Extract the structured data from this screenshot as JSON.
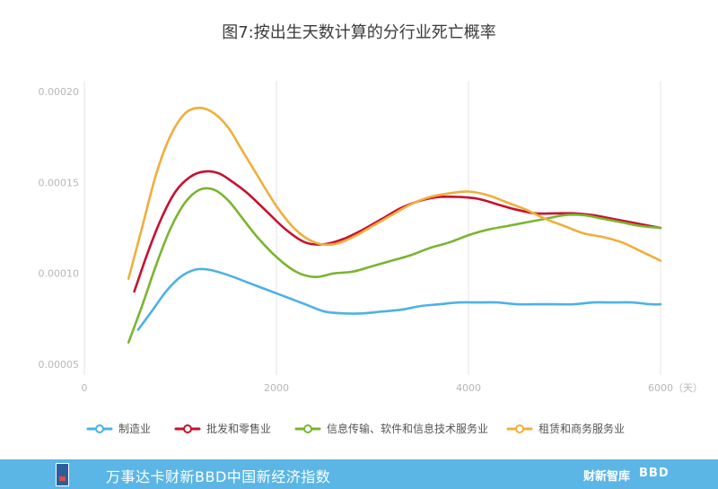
{
  "chart_data": {
    "type": "line",
    "title": "图7:按出生天数计算的分行业死亡概率",
    "xlabel": "",
    "ylabel": "",
    "x_unit": "（天）",
    "xlim": [
      0,
      6000
    ],
    "ylim": [
      5e-05,
      0.0002
    ],
    "x_ticks": [
      "0",
      "2000",
      "4000",
      "6000"
    ],
    "y_ticks": [
      "0.00005",
      "0.00010",
      "0.00015",
      "0.00020"
    ],
    "grid": "vertical",
    "legend_position": "bottom",
    "series": [
      {
        "name": "制造业",
        "color": "#4db2e4",
        "x": [
          560,
          700,
          850,
          1000,
          1150,
          1300,
          1500,
          1700,
          1900,
          2100,
          2300,
          2500,
          2700,
          2900,
          3100,
          3300,
          3500,
          3700,
          3900,
          4100,
          4300,
          4500,
          4700,
          4900,
          5100,
          5300,
          5500,
          5700,
          5900,
          6000
        ],
        "values": [
          6.9e-05,
          7.9e-05,
          9e-05,
          9.8e-05,
          0.000102,
          0.000102,
          9.9e-05,
          9.5e-05,
          9.1e-05,
          8.7e-05,
          8.3e-05,
          7.9e-05,
          7.8e-05,
          7.8e-05,
          7.9e-05,
          8e-05,
          8.2e-05,
          8.3e-05,
          8.4e-05,
          8.4e-05,
          8.4e-05,
          8.3e-05,
          8.3e-05,
          8.3e-05,
          8.3e-05,
          8.4e-05,
          8.4e-05,
          8.4e-05,
          8.3e-05,
          8.3e-05
        ]
      },
      {
        "name": "批发和零售业",
        "color": "#c8102e",
        "x": [
          520,
          650,
          800,
          950,
          1100,
          1250,
          1400,
          1550,
          1700,
          1900,
          2100,
          2300,
          2500,
          2700,
          2900,
          3100,
          3300,
          3500,
          3700,
          3900,
          4100,
          4300,
          4500,
          4700,
          4900,
          5100,
          5300,
          5500,
          5700,
          5900,
          6000
        ],
        "values": [
          9e-05,
          0.00011,
          0.00013,
          0.000145,
          0.000153,
          0.000156,
          0.000155,
          0.00015,
          0.000144,
          0.000134,
          0.000124,
          0.000117,
          0.000116,
          0.000119,
          0.000124,
          0.00013,
          0.000136,
          0.00014,
          0.000142,
          0.000142,
          0.000141,
          0.000138,
          0.000135,
          0.000133,
          0.000133,
          0.000133,
          0.000132,
          0.00013,
          0.000128,
          0.000126,
          0.000125
        ]
      },
      {
        "name": "信息传输、软件和信息技术服务业",
        "color": "#7ab52f",
        "x": [
          460,
          600,
          750,
          900,
          1050,
          1200,
          1350,
          1500,
          1650,
          1800,
          2000,
          2200,
          2400,
          2600,
          2800,
          3000,
          3200,
          3400,
          3600,
          3800,
          4000,
          4200,
          4400,
          4600,
          4800,
          5000,
          5200,
          5400,
          5600,
          5800,
          6000
        ],
        "values": [
          6.2e-05,
          8.2e-05,
          0.000105,
          0.000125,
          0.000139,
          0.000146,
          0.000146,
          0.00014,
          0.00013,
          0.00012,
          0.000109,
          0.000101,
          9.8e-05,
          0.0001,
          0.000101,
          0.000104,
          0.000107,
          0.00011,
          0.000114,
          0.000117,
          0.000121,
          0.000124,
          0.000126,
          0.000128,
          0.00013,
          0.000132,
          0.000132,
          0.00013,
          0.000128,
          0.000126,
          0.000125
        ]
      },
      {
        "name": "租赁和商务服务业",
        "color": "#f0ae3c",
        "x": [
          460,
          600,
          750,
          900,
          1050,
          1200,
          1350,
          1500,
          1650,
          1800,
          2000,
          2200,
          2400,
          2600,
          2800,
          3000,
          3200,
          3400,
          3600,
          3800,
          4000,
          4200,
          4400,
          4600,
          4800,
          5000,
          5200,
          5400,
          5600,
          5800,
          6000
        ],
        "values": [
          9.7e-05,
          0.000125,
          0.000155,
          0.000176,
          0.000188,
          0.000191,
          0.000188,
          0.00018,
          0.000167,
          0.000154,
          0.000137,
          0.000124,
          0.000117,
          0.000116,
          0.00012,
          0.000126,
          0.000132,
          0.000138,
          0.000142,
          0.000144,
          0.000145,
          0.000143,
          0.000139,
          0.000135,
          0.00013,
          0.000126,
          0.000122,
          0.00012,
          0.000117,
          0.000112,
          0.000107
        ]
      }
    ]
  },
  "footer": {
    "text": "万事达卡财新BBD中国新经济指数",
    "brand": "财新智库",
    "brand2": "BBD"
  }
}
